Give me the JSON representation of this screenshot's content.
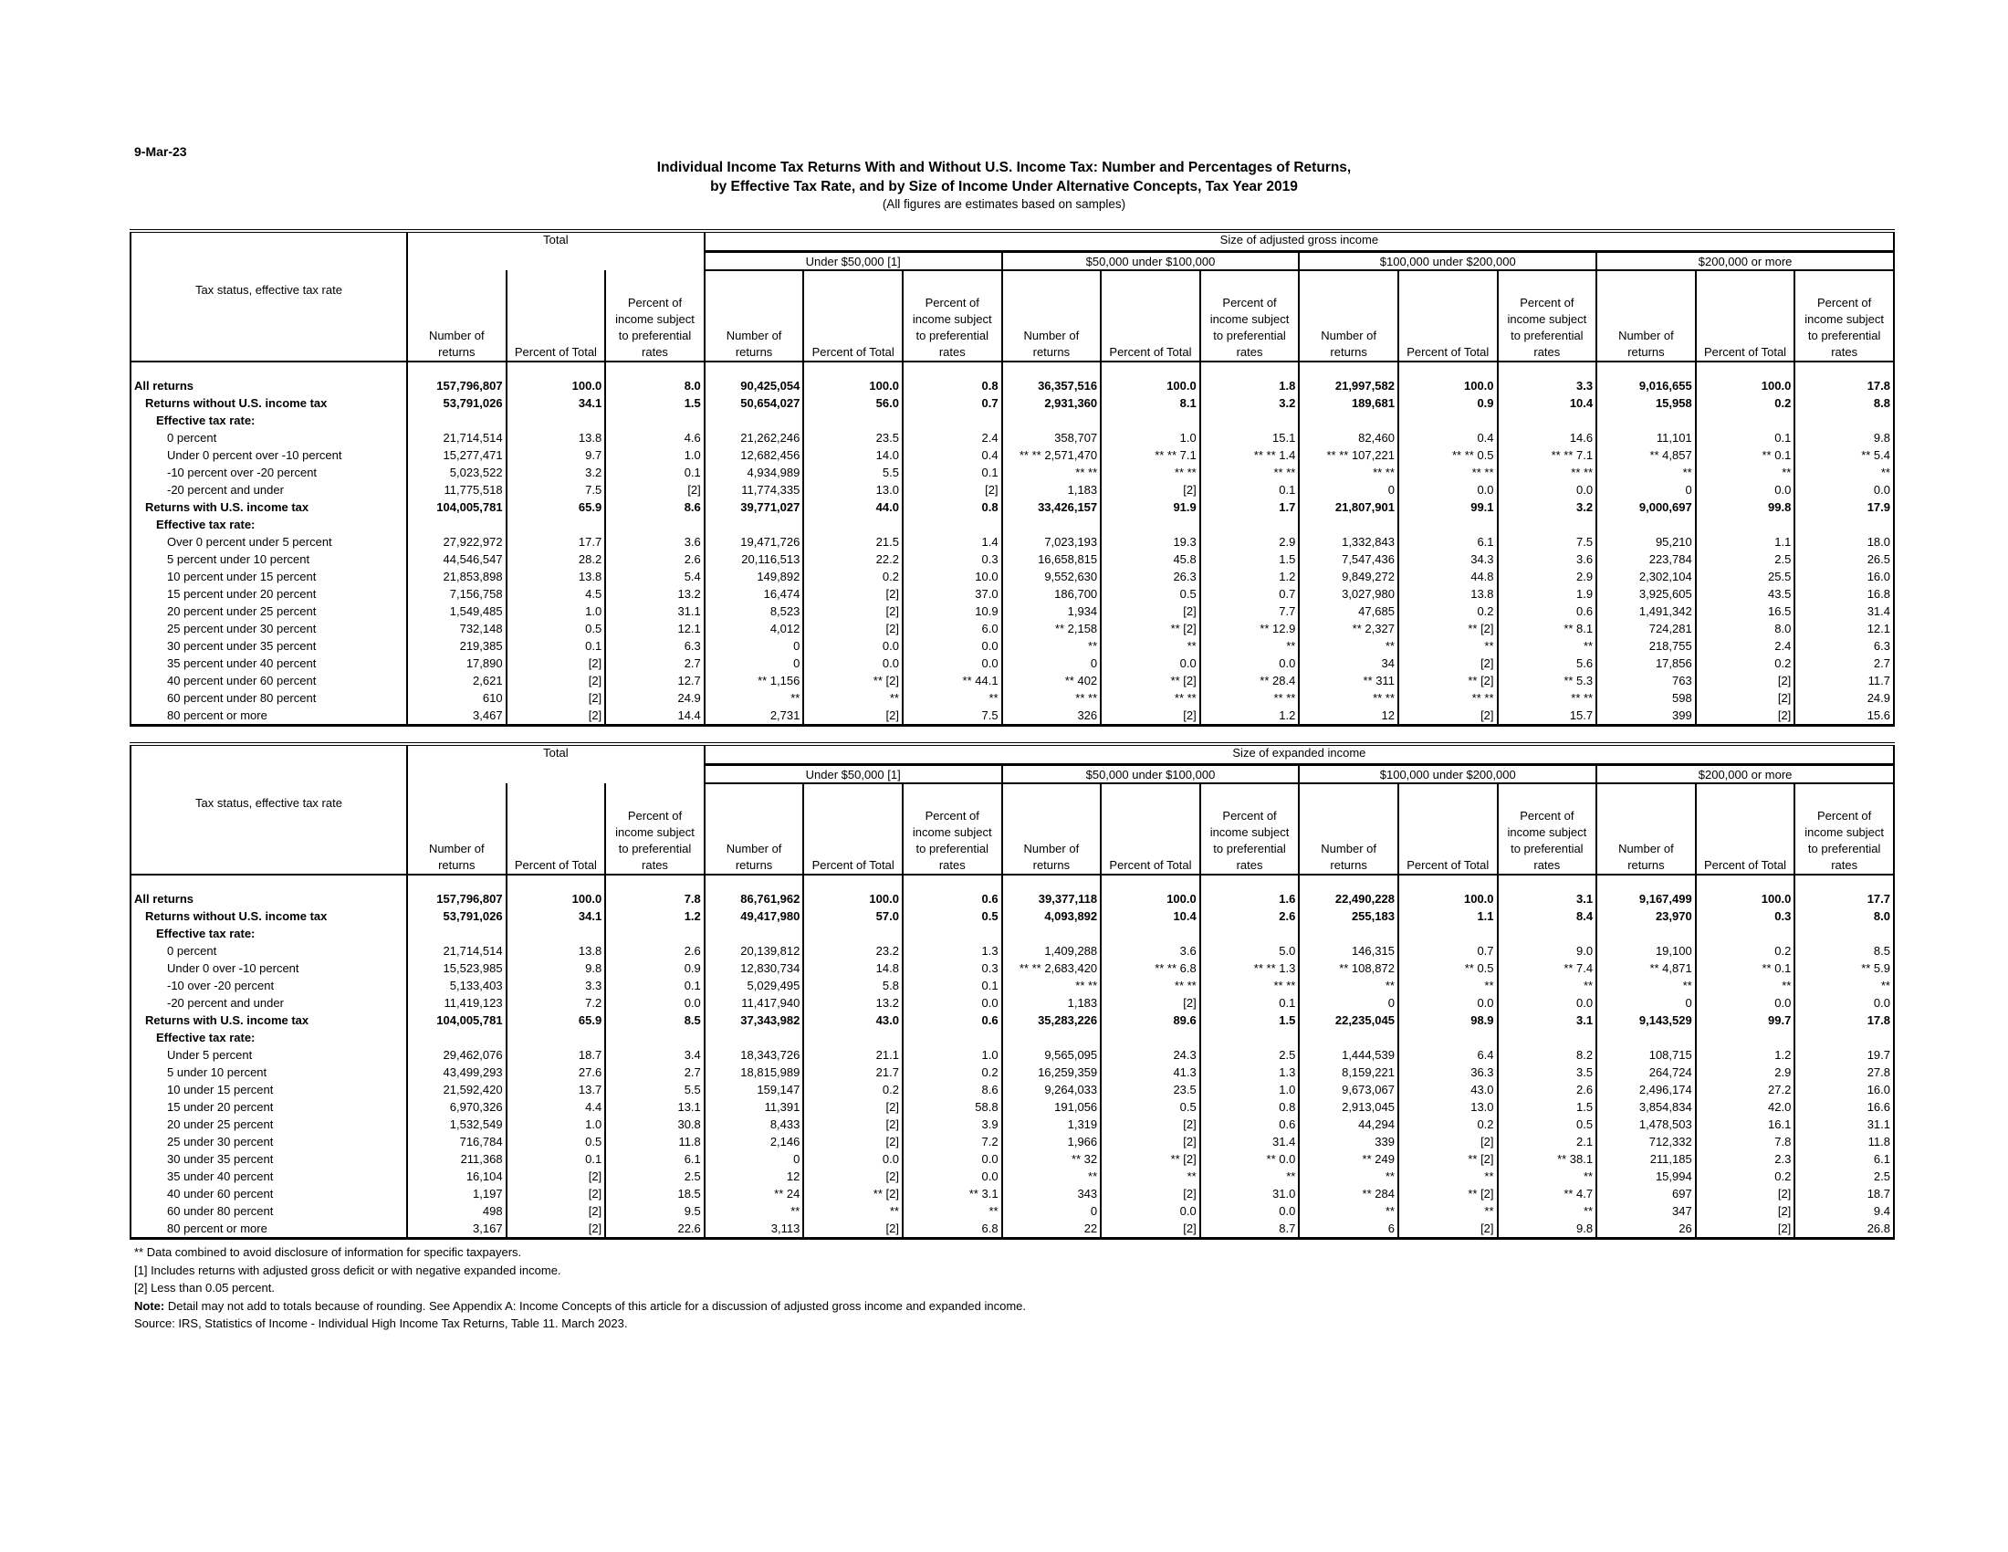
{
  "date": "9-Mar-23",
  "title_line1": "Individual Income Tax Returns With and Without U.S. Income Tax:  Number and Percentages of Returns,",
  "title_line2": "by Effective Tax Rate, and by Size of Income Under Alternative Concepts, Tax Year 2019",
  "subtitle": "(All figures are estimates based on samples)",
  "stub_header": "Tax status, effective tax rate",
  "total_header": "Total",
  "groups": [
    "Under $50,000 [1]",
    "$50,000 under $100,000",
    "$100,000 under $200,000",
    "$200,000 or more"
  ],
  "col_headers": [
    "Number of returns",
    "Percent of Total",
    "Percent of income subject to preferential rates"
  ],
  "tables": [
    {
      "size_header": "Size of adjusted gross income",
      "rows": [
        {
          "label": "All returns",
          "indent": 0,
          "bold": true,
          "values": [
            "157,796,807",
            "100.0",
            "8.0",
            "90,425,054",
            "100.0",
            "0.8",
            "36,357,516",
            "100.0",
            "1.8",
            "21,997,582",
            "100.0",
            "3.3",
            "9,016,655",
            "100.0",
            "17.8"
          ]
        },
        {
          "label": "Returns without U.S. income tax",
          "indent": 1,
          "bold": true,
          "values": [
            "53,791,026",
            "34.1",
            "1.5",
            "50,654,027",
            "56.0",
            "0.7",
            "2,931,360",
            "8.1",
            "3.2",
            "189,681",
            "0.9",
            "10.4",
            "15,958",
            "0.2",
            "8.8"
          ]
        },
        {
          "label": "Effective tax rate:",
          "indent": 2,
          "bold": true,
          "values": []
        },
        {
          "label": "0 percent",
          "indent": 3,
          "bold": false,
          "values": [
            "21,714,514",
            "13.8",
            "4.6",
            "21,262,246",
            "23.5",
            "2.4",
            "358,707",
            "1.0",
            "15.1",
            "82,460",
            "0.4",
            "14.6",
            "11,101",
            "0.1",
            "9.8"
          ]
        },
        {
          "label": "Under 0 percent over -10 percent",
          "indent": 3,
          "bold": false,
          "values": [
            "15,277,471",
            "9.7",
            "1.0",
            "12,682,456",
            "14.0",
            "0.4",
            "** ** 2,571,470",
            "** ** 7.1",
            "** ** 1.4",
            "** ** 107,221",
            "** ** 0.5",
            "** ** 7.1",
            "** 4,857",
            "** 0.1",
            "** 5.4"
          ]
        },
        {
          "label": "-10 percent over -20 percent",
          "indent": 3,
          "bold": false,
          "values": [
            "5,023,522",
            "3.2",
            "0.1",
            "4,934,989",
            "5.5",
            "0.1",
            "** **",
            "** **",
            "** **",
            "** **",
            "** **",
            "** **",
            "**",
            "**",
            "**"
          ]
        },
        {
          "label": "-20 percent and under",
          "indent": 3,
          "bold": false,
          "values": [
            "11,775,518",
            "7.5",
            "[2]",
            "11,774,335",
            "13.0",
            "[2]",
            "1,183",
            "[2]",
            "0.1",
            "0",
            "0.0",
            "0.0",
            "0",
            "0.0",
            "0.0"
          ]
        },
        {
          "label": "Returns with U.S. income tax",
          "indent": 1,
          "bold": true,
          "values": [
            "104,005,781",
            "65.9",
            "8.6",
            "39,771,027",
            "44.0",
            "0.8",
            "33,426,157",
            "91.9",
            "1.7",
            "21,807,901",
            "99.1",
            "3.2",
            "9,000,697",
            "99.8",
            "17.9"
          ]
        },
        {
          "label": "Effective tax rate:",
          "indent": 2,
          "bold": true,
          "values": []
        },
        {
          "label": "Over 0 percent under 5 percent",
          "indent": 3,
          "bold": false,
          "values": [
            "27,922,972",
            "17.7",
            "3.6",
            "19,471,726",
            "21.5",
            "1.4",
            "7,023,193",
            "19.3",
            "2.9",
            "1,332,843",
            "6.1",
            "7.5",
            "95,210",
            "1.1",
            "18.0"
          ]
        },
        {
          "label": "5 percent under 10 percent",
          "indent": 3,
          "bold": false,
          "values": [
            "44,546,547",
            "28.2",
            "2.6",
            "20,116,513",
            "22.2",
            "0.3",
            "16,658,815",
            "45.8",
            "1.5",
            "7,547,436",
            "34.3",
            "3.6",
            "223,784",
            "2.5",
            "26.5"
          ]
        },
        {
          "label": "10 percent under 15 percent",
          "indent": 3,
          "bold": false,
          "values": [
            "21,853,898",
            "13.8",
            "5.4",
            "149,892",
            "0.2",
            "10.0",
            "9,552,630",
            "26.3",
            "1.2",
            "9,849,272",
            "44.8",
            "2.9",
            "2,302,104",
            "25.5",
            "16.0"
          ]
        },
        {
          "label": "15 percent under 20 percent",
          "indent": 3,
          "bold": false,
          "values": [
            "7,156,758",
            "4.5",
            "13.2",
            "16,474",
            "[2]",
            "37.0",
            "186,700",
            "0.5",
            "0.7",
            "3,027,980",
            "13.8",
            "1.9",
            "3,925,605",
            "43.5",
            "16.8"
          ]
        },
        {
          "label": "20 percent under 25 percent",
          "indent": 3,
          "bold": false,
          "values": [
            "1,549,485",
            "1.0",
            "31.1",
            "8,523",
            "[2]",
            "10.9",
            "1,934",
            "[2]",
            "7.7",
            "47,685",
            "0.2",
            "0.6",
            "1,491,342",
            "16.5",
            "31.4"
          ]
        },
        {
          "label": "25 percent under 30 percent",
          "indent": 3,
          "bold": false,
          "values": [
            "732,148",
            "0.5",
            "12.1",
            "4,012",
            "[2]",
            "6.0",
            "** 2,158",
            "** [2]",
            "** 12.9",
            "** 2,327",
            "** [2]",
            "** 8.1",
            "724,281",
            "8.0",
            "12.1"
          ]
        },
        {
          "label": "30 percent under 35 percent",
          "indent": 3,
          "bold": false,
          "values": [
            "219,385",
            "0.1",
            "6.3",
            "0",
            "0.0",
            "0.0",
            "**",
            "**",
            "**",
            "**",
            "**",
            "**",
            "218,755",
            "2.4",
            "6.3"
          ]
        },
        {
          "label": "35 percent under 40 percent",
          "indent": 3,
          "bold": false,
          "values": [
            "17,890",
            "[2]",
            "2.7",
            "0",
            "0.0",
            "0.0",
            "0",
            "0.0",
            "0.0",
            "34",
            "[2]",
            "5.6",
            "17,856",
            "0.2",
            "2.7"
          ]
        },
        {
          "label": "40 percent under 60 percent",
          "indent": 3,
          "bold": false,
          "values": [
            "2,621",
            "[2]",
            "12.7",
            "** 1,156",
            "** [2]",
            "** 44.1",
            "** 402",
            "** [2]",
            "** 28.4",
            "** 311",
            "** [2]",
            "** 5.3",
            "763",
            "[2]",
            "11.7"
          ]
        },
        {
          "label": "60 percent under 80 percent",
          "indent": 3,
          "bold": false,
          "values": [
            "610",
            "[2]",
            "24.9",
            "**",
            "**",
            "**",
            "** **",
            "** **",
            "** **",
            "** **",
            "** **",
            "** **",
            "598",
            "[2]",
            "24.9"
          ]
        },
        {
          "label": "80 percent or more",
          "indent": 3,
          "bold": false,
          "values": [
            "3,467",
            "[2]",
            "14.4",
            "2,731",
            "[2]",
            "7.5",
            "326",
            "[2]",
            "1.2",
            "12",
            "[2]",
            "15.7",
            "399",
            "[2]",
            "15.6"
          ]
        }
      ]
    },
    {
      "size_header": "Size of expanded income",
      "rows": [
        {
          "label": "All returns",
          "indent": 0,
          "bold": true,
          "values": [
            "157,796,807",
            "100.0",
            "7.8",
            "86,761,962",
            "100.0",
            "0.6",
            "39,377,118",
            "100.0",
            "1.6",
            "22,490,228",
            "100.0",
            "3.1",
            "9,167,499",
            "100.0",
            "17.7"
          ]
        },
        {
          "label": "Returns without U.S. income tax",
          "indent": 1,
          "bold": true,
          "values": [
            "53,791,026",
            "34.1",
            "1.2",
            "49,417,980",
            "57.0",
            "0.5",
            "4,093,892",
            "10.4",
            "2.6",
            "255,183",
            "1.1",
            "8.4",
            "23,970",
            "0.3",
            "8.0"
          ]
        },
        {
          "label": "Effective tax rate:",
          "indent": 2,
          "bold": true,
          "values": []
        },
        {
          "label": "0 percent",
          "indent": 3,
          "bold": false,
          "values": [
            "21,714,514",
            "13.8",
            "2.6",
            "20,139,812",
            "23.2",
            "1.3",
            "1,409,288",
            "3.6",
            "5.0",
            "146,315",
            "0.7",
            "9.0",
            "19,100",
            "0.2",
            "8.5"
          ]
        },
        {
          "label": "Under 0 over -10 percent",
          "indent": 3,
          "bold": false,
          "values": [
            "15,523,985",
            "9.8",
            "0.9",
            "12,830,734",
            "14.8",
            "0.3",
            "** ** 2,683,420",
            "** ** 6.8",
            "** ** 1.3",
            "** 108,872",
            "** 0.5",
            "** 7.4",
            "** 4,871",
            "** 0.1",
            "** 5.9"
          ]
        },
        {
          "label": "-10 over -20 percent",
          "indent": 3,
          "bold": false,
          "values": [
            "5,133,403",
            "3.3",
            "0.1",
            "5,029,495",
            "5.8",
            "0.1",
            "** **",
            "** **",
            "** **",
            "**",
            "**",
            "**",
            "**",
            "**",
            "**"
          ]
        },
        {
          "label": "-20 percent and under",
          "indent": 3,
          "bold": false,
          "values": [
            "11,419,123",
            "7.2",
            "0.0",
            "11,417,940",
            "13.2",
            "0.0",
            "1,183",
            "[2]",
            "0.1",
            "0",
            "0.0",
            "0.0",
            "0",
            "0.0",
            "0.0"
          ]
        },
        {
          "label": "Returns with U.S. income tax",
          "indent": 1,
          "bold": true,
          "values": [
            "104,005,781",
            "65.9",
            "8.5",
            "37,343,982",
            "43.0",
            "0.6",
            "35,283,226",
            "89.6",
            "1.5",
            "22,235,045",
            "98.9",
            "3.1",
            "9,143,529",
            "99.7",
            "17.8"
          ]
        },
        {
          "label": "Effective tax rate:",
          "indent": 2,
          "bold": true,
          "values": []
        },
        {
          "label": "Under 5 percent",
          "indent": 3,
          "bold": false,
          "values": [
            "29,462,076",
            "18.7",
            "3.4",
            "18,343,726",
            "21.1",
            "1.0",
            "9,565,095",
            "24.3",
            "2.5",
            "1,444,539",
            "6.4",
            "8.2",
            "108,715",
            "1.2",
            "19.7"
          ]
        },
        {
          "label": "5 under 10 percent",
          "indent": 3,
          "bold": false,
          "values": [
            "43,499,293",
            "27.6",
            "2.7",
            "18,815,989",
            "21.7",
            "0.2",
            "16,259,359",
            "41.3",
            "1.3",
            "8,159,221",
            "36.3",
            "3.5",
            "264,724",
            "2.9",
            "27.8"
          ]
        },
        {
          "label": "10 under 15 percent",
          "indent": 3,
          "bold": false,
          "values": [
            "21,592,420",
            "13.7",
            "5.5",
            "159,147",
            "0.2",
            "8.6",
            "9,264,033",
            "23.5",
            "1.0",
            "9,673,067",
            "43.0",
            "2.6",
            "2,496,174",
            "27.2",
            "16.0"
          ]
        },
        {
          "label": "15 under 20 percent",
          "indent": 3,
          "bold": false,
          "values": [
            "6,970,326",
            "4.4",
            "13.1",
            "11,391",
            "[2]",
            "58.8",
            "191,056",
            "0.5",
            "0.8",
            "2,913,045",
            "13.0",
            "1.5",
            "3,854,834",
            "42.0",
            "16.6"
          ]
        },
        {
          "label": "20 under 25 percent",
          "indent": 3,
          "bold": false,
          "values": [
            "1,532,549",
            "1.0",
            "30.8",
            "8,433",
            "[2]",
            "3.9",
            "1,319",
            "[2]",
            "0.6",
            "44,294",
            "0.2",
            "0.5",
            "1,478,503",
            "16.1",
            "31.1"
          ]
        },
        {
          "label": "25 under 30 percent",
          "indent": 3,
          "bold": false,
          "values": [
            "716,784",
            "0.5",
            "11.8",
            "2,146",
            "[2]",
            "7.2",
            "1,966",
            "[2]",
            "31.4",
            "339",
            "[2]",
            "2.1",
            "712,332",
            "7.8",
            "11.8"
          ]
        },
        {
          "label": "30 under 35 percent",
          "indent": 3,
          "bold": false,
          "values": [
            "211,368",
            "0.1",
            "6.1",
            "0",
            "0.0",
            "0.0",
            "** 32",
            "** [2]",
            "** 0.0",
            "** 249",
            "** [2]",
            "** 38.1",
            "211,185",
            "2.3",
            "6.1"
          ]
        },
        {
          "label": "35 under 40 percent",
          "indent": 3,
          "bold": false,
          "values": [
            "16,104",
            "[2]",
            "2.5",
            "12",
            "[2]",
            "0.0",
            "**",
            "**",
            "**",
            "**",
            "**",
            "**",
            "15,994",
            "0.2",
            "2.5"
          ]
        },
        {
          "label": "40 under 60 percent",
          "indent": 3,
          "bold": false,
          "values": [
            "1,197",
            "[2]",
            "18.5",
            "** 24",
            "** [2]",
            "** 3.1",
            "343",
            "[2]",
            "31.0",
            "** 284",
            "** [2]",
            "** 4.7",
            "697",
            "[2]",
            "18.7"
          ]
        },
        {
          "label": "60 under 80 percent",
          "indent": 3,
          "bold": false,
          "values": [
            "498",
            "[2]",
            "9.5",
            "**",
            "**",
            "**",
            "0",
            "0.0",
            "0.0",
            "**",
            "**",
            "**",
            "347",
            "[2]",
            "9.4"
          ]
        },
        {
          "label": "80 percent or more",
          "indent": 3,
          "bold": false,
          "values": [
            "3,167",
            "[2]",
            "22.6",
            "3,113",
            "[2]",
            "6.8",
            "22",
            "[2]",
            "8.7",
            "6",
            "[2]",
            "9.8",
            "26",
            "[2]",
            "26.8"
          ]
        }
      ]
    }
  ],
  "notes": {
    "n1": "** Data combined to avoid disclosure of information for specific taxpayers.",
    "n2": "[1] Includes returns with adjusted gross deficit or with negative expanded income.",
    "n3": "[2] Less than 0.05 percent.",
    "note_label": "Note:",
    "note_text": " Detail may not add to totals because of rounding. See Appendix A: Income Concepts of this article for a discussion of adjusted gross income and expanded income.",
    "source": "Source: IRS, Statistics of Income - Individual High Income Tax Returns, Table 11. March 2023."
  }
}
